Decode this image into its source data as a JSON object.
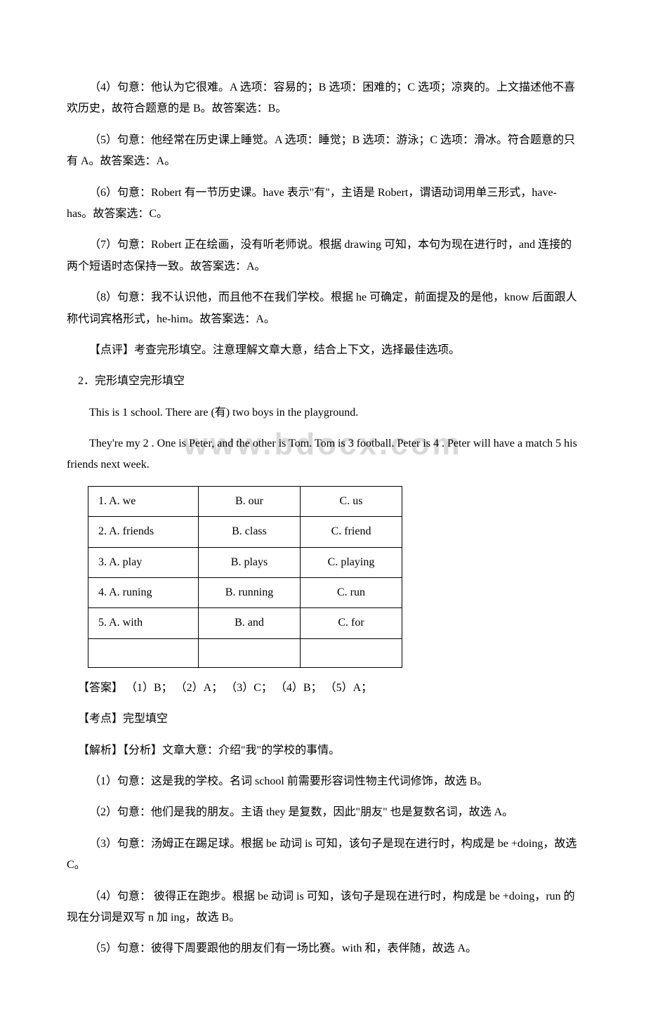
{
  "watermark": "www.bdocx.com",
  "paragraphs": {
    "p4": "（4）句意：他认为它很难。A 选项：容易的；B 选项：困难的；C 选项；凉爽的。上文描述他不喜欢历史，故符合题意的是 B。故答案选：B。",
    "p5": "（5）句意：他经常在历史课上睡觉。A 选项：睡觉；B 选项：游泳；C 选项：滑冰。符合题意的只有 A。故答案选：A。",
    "p6": "（6）句意：Robert 有一节历史课。have 表示\"有\"，主语是 Robert，谓语动词用单三形式，have-has。故答案选：C。",
    "p7": "（7）句意：Robert 正在绘画，没有听老师说。根据 drawing 可知，本句为现在进行时，and 连接的两个短语时态保持一致。故答案选：A。",
    "p8": "（8）句意：我不认识他，而且他不在我们学校。根据 he 可确定，前面提及的是他，know 后面跟人称代词宾格形式，he-him。故答案选：A。",
    "comment1": "【点评】考查完形填空。注意理解文章大意，结合上下文，选择最佳选项。",
    "q2title": "2．完形填空完形填空",
    "q2p1": "This is 1  school. There are (有) two boys in the playground.",
    "q2p2": "They're my  2 . One is Peter, and the other is Tom. Tom is  3 football. Peter is 4 . Peter will have a match  5  his friends next week.",
    "answer": "【答案】 （1）B； （2）A； （3）C； （4）B； （5）A；",
    "kaodian": "【考点】完型填空",
    "jiexi": "【解析】【分析】文章大意：介绍\"我\"的学校的事情。",
    "e1": "（1）句意：这是我的学校。名词 school 前需要形容词性物主代词修饰，故选 B。",
    "e2": "（2）句意：他们是我的朋友。主语 they 是复数，因此\"朋友\" 也是复数名词，故选 A。",
    "e3": "（3）句意：汤姆正在踢足球。根据 be 动词 is 可知，该句子是现在进行时，构成是 be +doing，故选 C。",
    "e4": "（4）句意： 彼得正在跑步。根据 be 动词 is 可知，该句子是现在进行时，构成是 be +doing，run 的现在分词是双写 n 加 ing，故选 B。",
    "e5": "（5）句意：彼得下周要跟他的朋友们有一场比赛。with 和，表伴随，故选 A。"
  },
  "table": {
    "rows": [
      [
        "1. A. we",
        "B. our",
        "C. us"
      ],
      [
        "2. A. friends",
        "B. class",
        "C. friend"
      ],
      [
        "3. A. play",
        "B. plays",
        "C. playing"
      ],
      [
        "4. A. runing",
        "B. running",
        "C. run"
      ],
      [
        "5. A. with",
        "B. and",
        "C. for"
      ]
    ]
  }
}
